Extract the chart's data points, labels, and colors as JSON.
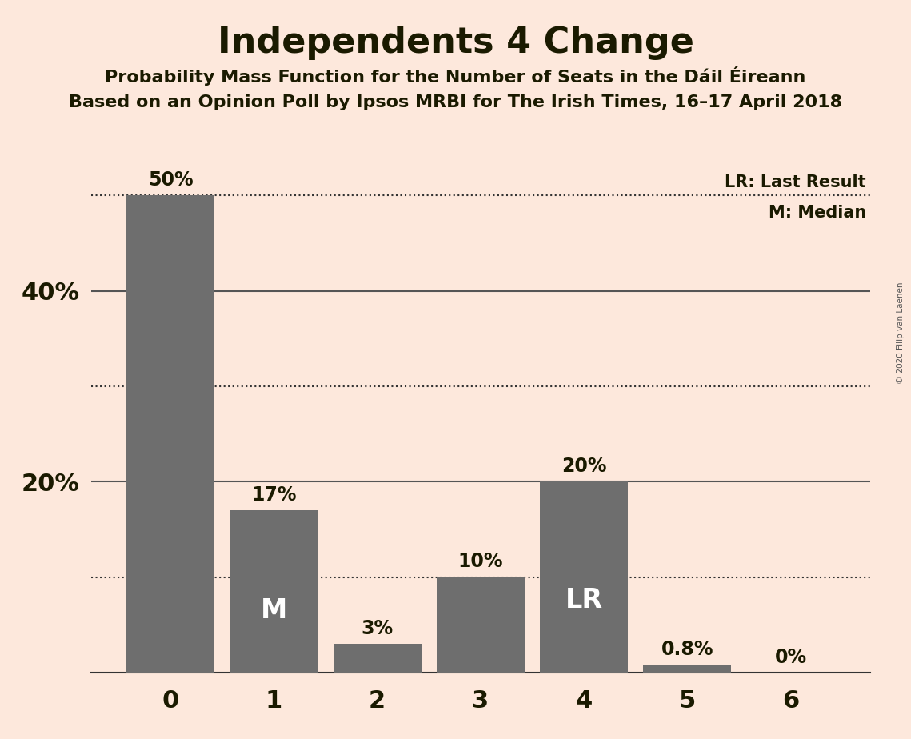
{
  "title": "Independents 4 Change",
  "subtitle1": "Probability Mass Function for the Number of Seats in the Dáil Éireann",
  "subtitle2": "Based on an Opinion Poll by Ipsos MRBI for The Irish Times, 16–17 April 2018",
  "copyright": "© 2020 Filip van Laenen",
  "categories": [
    0,
    1,
    2,
    3,
    4,
    5,
    6
  ],
  "values": [
    50,
    17,
    3,
    10,
    20,
    0.8,
    0
  ],
  "bar_labels": [
    "50%",
    "17%",
    "3%",
    "10%",
    "20%",
    "0.8%",
    "0%"
  ],
  "bar_color": "#6e6e6e",
  "background_color": "#fde8dc",
  "text_color": "#1a1a00",
  "median_bar": 1,
  "lr_bar": 4,
  "median_label": "M",
  "lr_label": "LR",
  "legend_lr": "LR: Last Result",
  "legend_m": "M: Median",
  "dotted_lines": [
    50,
    30,
    10
  ],
  "solid_lines": [
    40,
    20
  ],
  "ylim": [
    0,
    55
  ],
  "ytick_positions": [
    20,
    40
  ],
  "ytick_labels": [
    "20%",
    "40%"
  ]
}
